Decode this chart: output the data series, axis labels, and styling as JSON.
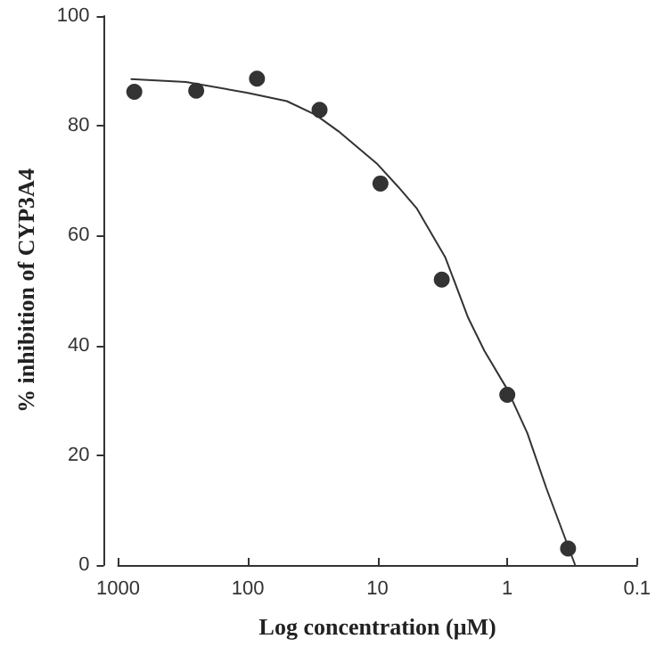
{
  "chart_data": {
    "type": "scatter",
    "xlabel": "Log concentration (μM)",
    "ylabel": "% inhibition of CYP3A4",
    "log": "x",
    "xlim": [
      1000,
      0.1
    ],
    "xticks": [
      1000,
      100,
      10,
      1,
      0.1
    ],
    "ylim": [
      0,
      100
    ],
    "yticks": [
      0,
      20,
      40,
      60,
      80,
      100
    ],
    "grid": false,
    "series": [
      {
        "type": "scatter",
        "color": "#000000",
        "marker": "circle",
        "x": [
          750,
          250,
          85,
          28,
          9.5,
          3.2,
          1,
          0.34
        ],
        "values": [
          86.2,
          86.4,
          88.6,
          82.9,
          69.5,
          52.0,
          31.0,
          3.0
        ]
      },
      {
        "type": "line",
        "color": "#333333",
        "marker": "none",
        "line_style": "solid",
        "x": [
          800,
          300,
          100,
          50,
          30,
          20,
          10,
          7,
          5,
          3,
          2,
          1.5,
          1,
          0.7,
          0.5,
          0.3
        ],
        "values": [
          88.5,
          88,
          86,
          84.5,
          82,
          79,
          73,
          69,
          65,
          56,
          45,
          39,
          32,
          24,
          14,
          0
        ]
      }
    ]
  }
}
